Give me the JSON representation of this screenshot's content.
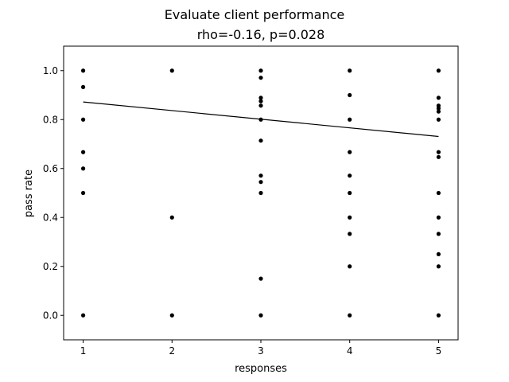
{
  "chart_data": {
    "type": "scatter",
    "title": "Evaluate client performance",
    "subtitle": "rho=-0.16, p=0.028",
    "xlabel": "responses",
    "ylabel": "pass rate",
    "xlim": [
      0.78,
      5.22
    ],
    "ylim": [
      -0.1,
      1.1
    ],
    "xticks": [
      1,
      2,
      3,
      4,
      5
    ],
    "xtick_labels": [
      "1",
      "2",
      "3",
      "4",
      "5"
    ],
    "yticks": [
      0.0,
      0.2,
      0.4,
      0.6,
      0.8,
      1.0
    ],
    "ytick_labels": [
      "0.0",
      "0.2",
      "0.4",
      "0.6",
      "0.8",
      "1.0"
    ],
    "grid": false,
    "colors": {
      "points": "#000000",
      "trend": "#000000",
      "axes": "#000000"
    },
    "points": [
      {
        "x": 1,
        "y": 1.0
      },
      {
        "x": 1,
        "y": 0.933
      },
      {
        "x": 1,
        "y": 0.8
      },
      {
        "x": 1,
        "y": 0.667
      },
      {
        "x": 1,
        "y": 0.6
      },
      {
        "x": 1,
        "y": 0.5
      },
      {
        "x": 1,
        "y": 0.0
      },
      {
        "x": 2,
        "y": 1.0
      },
      {
        "x": 2,
        "y": 0.4
      },
      {
        "x": 2,
        "y": 0.0
      },
      {
        "x": 3,
        "y": 1.0
      },
      {
        "x": 3,
        "y": 0.971
      },
      {
        "x": 3,
        "y": 0.889
      },
      {
        "x": 3,
        "y": 0.875
      },
      {
        "x": 3,
        "y": 0.857
      },
      {
        "x": 3,
        "y": 0.8
      },
      {
        "x": 3,
        "y": 0.714
      },
      {
        "x": 3,
        "y": 0.571
      },
      {
        "x": 3,
        "y": 0.545
      },
      {
        "x": 3,
        "y": 0.5
      },
      {
        "x": 3,
        "y": 0.15
      },
      {
        "x": 3,
        "y": 0.0
      },
      {
        "x": 4,
        "y": 1.0
      },
      {
        "x": 4,
        "y": 0.9
      },
      {
        "x": 4,
        "y": 0.8
      },
      {
        "x": 4,
        "y": 0.667
      },
      {
        "x": 4,
        "y": 0.571
      },
      {
        "x": 4,
        "y": 0.5
      },
      {
        "x": 4,
        "y": 0.4
      },
      {
        "x": 4,
        "y": 0.333
      },
      {
        "x": 4,
        "y": 0.2
      },
      {
        "x": 4,
        "y": 0.0
      },
      {
        "x": 5,
        "y": 1.0
      },
      {
        "x": 5,
        "y": 0.889
      },
      {
        "x": 5,
        "y": 0.857
      },
      {
        "x": 5,
        "y": 0.846
      },
      {
        "x": 5,
        "y": 0.833
      },
      {
        "x": 5,
        "y": 0.8
      },
      {
        "x": 5,
        "y": 0.667
      },
      {
        "x": 5,
        "y": 0.647
      },
      {
        "x": 5,
        "y": 0.5
      },
      {
        "x": 5,
        "y": 0.4
      },
      {
        "x": 5,
        "y": 0.333
      },
      {
        "x": 5,
        "y": 0.25
      },
      {
        "x": 5,
        "y": 0.2
      },
      {
        "x": 5,
        "y": 0.0
      }
    ],
    "trend_line": {
      "x": [
        1,
        5
      ],
      "y": [
        0.872,
        0.731
      ]
    }
  }
}
